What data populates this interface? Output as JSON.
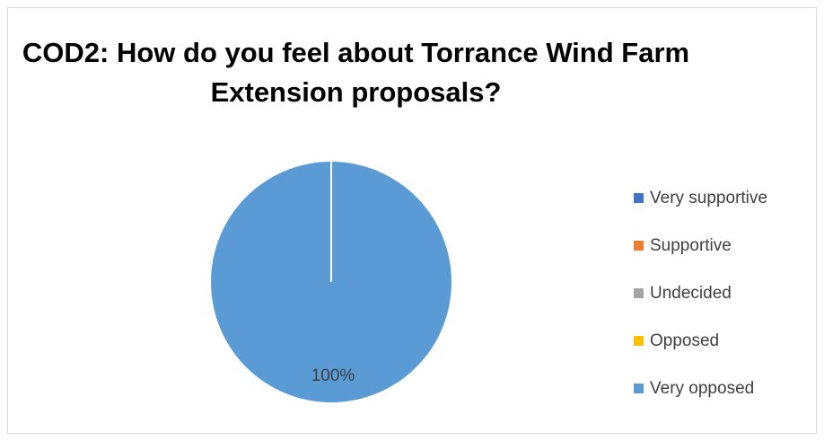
{
  "chart_data": {
    "type": "pie",
    "title": "COD2: How do you feel about Torrance Wind Farm Extension proposals?",
    "categories": [
      "Very supportive",
      "Supportive",
      "Undecided",
      "Opposed",
      "Very opposed"
    ],
    "values": [
      0,
      0,
      0,
      0,
      100
    ],
    "colors": [
      "#4472c4",
      "#ed7d31",
      "#a5a5a5",
      "#ffc000",
      "#5b9bd5"
    ],
    "data_labels": [
      "",
      "",
      "",
      "",
      "100%"
    ],
    "legend_position": "right"
  }
}
